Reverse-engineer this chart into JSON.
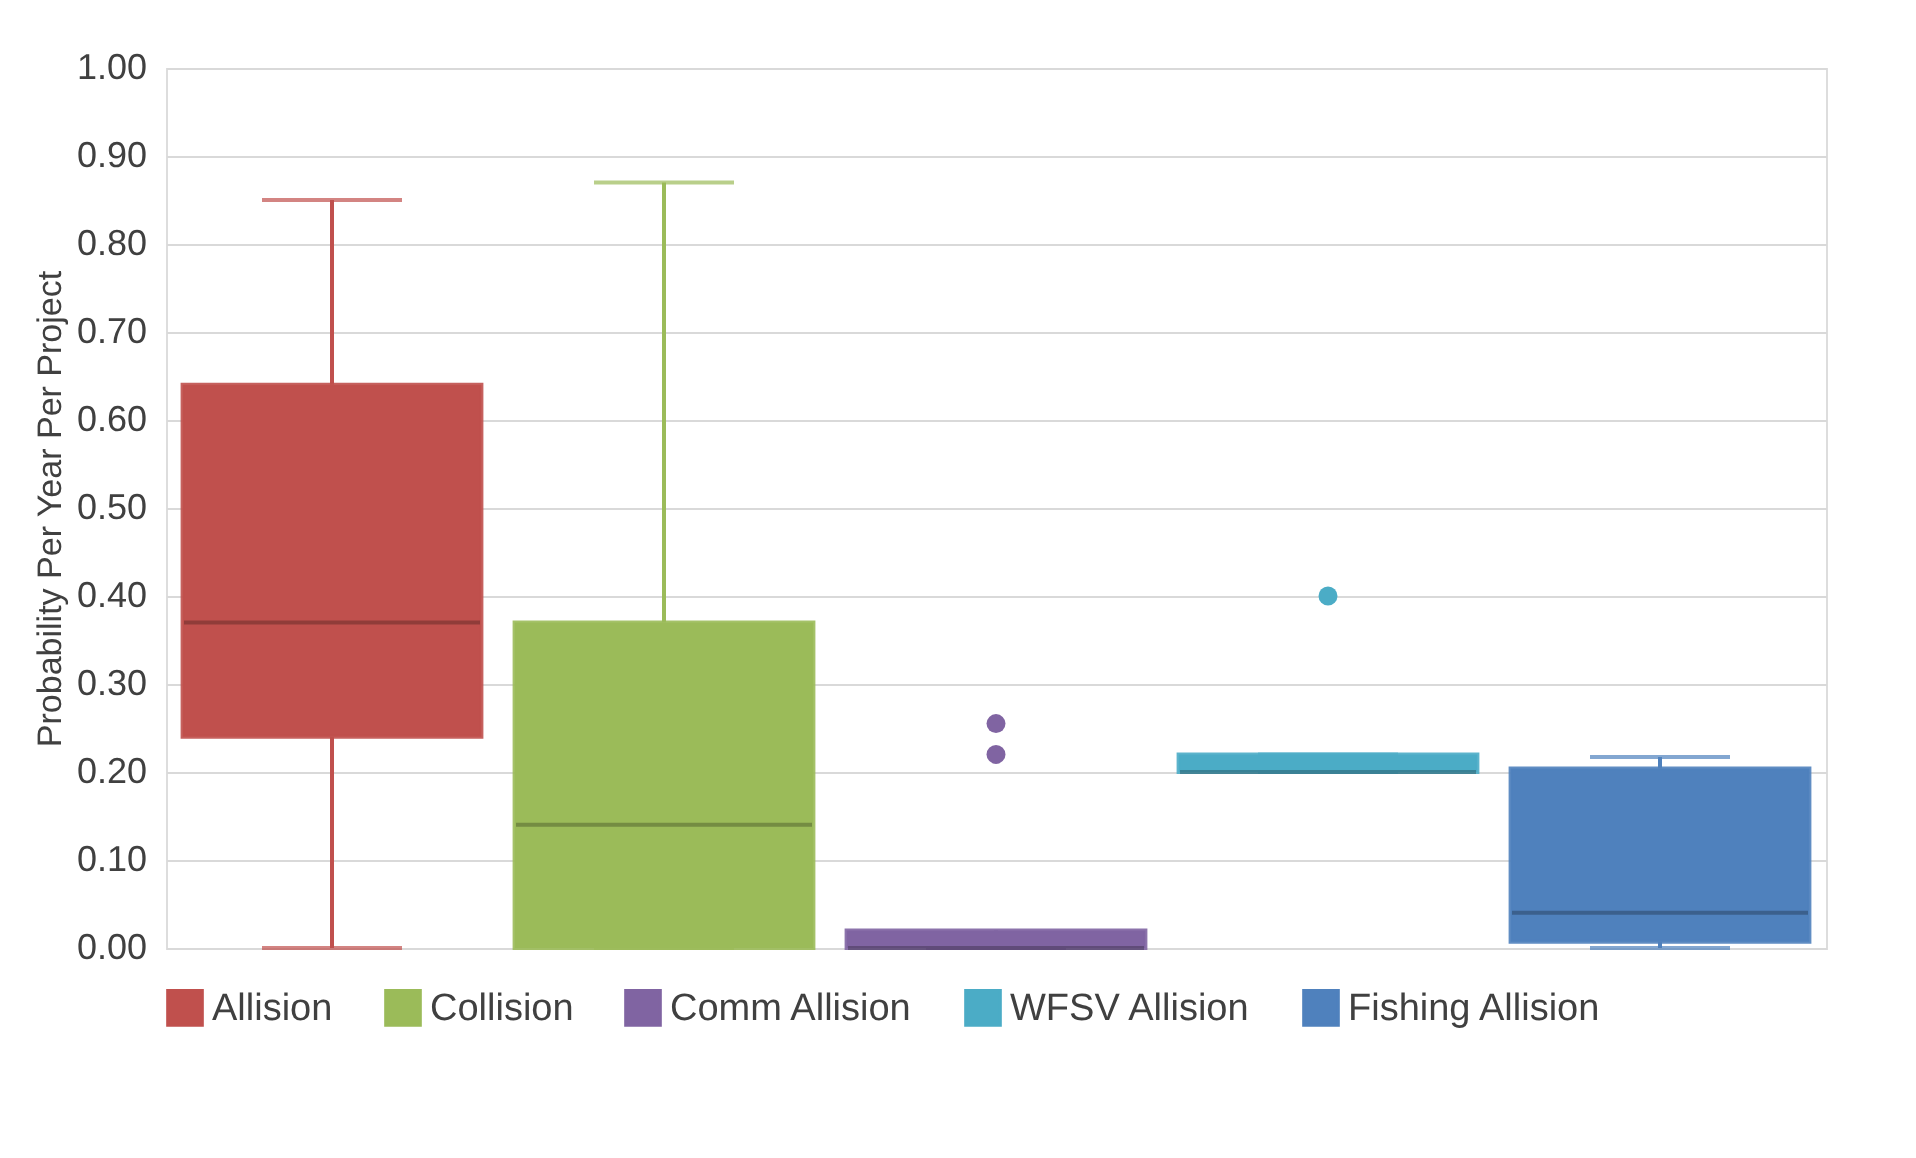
{
  "chart_data": {
    "type": "box",
    "ylabel": "Probability Per Year Per Project",
    "categories": [
      null,
      null,
      null,
      null,
      null
    ],
    "series": [
      {
        "name": "Allision",
        "color": "#c0504d",
        "boxes": [
          {
            "low": 0,
            "q1": 0.24,
            "median": 0.37,
            "q3": 0.64,
            "high": 0.85
          },
          null,
          null,
          null,
          null
        ]
      },
      {
        "name": "Collision",
        "color": "#9bbb59",
        "boxes": [
          null,
          {
            "low": 0,
            "q1": 0,
            "median": 0.14,
            "q3": 0.37,
            "high": 0.87
          },
          null,
          null,
          null
        ]
      },
      {
        "name": "Comm Allision",
        "color": "#8064a2",
        "boxes": [
          null,
          null,
          {
            "low": 0,
            "q1": 0,
            "median": 0,
            "q3": 0.02,
            "high": 0,
            "outliers": [
              0.255,
              0.22
            ]
          },
          null,
          null
        ]
      },
      {
        "name": "WFSV Allision",
        "color": "#4bacc6",
        "boxes": [
          null,
          null,
          null,
          {
            "low": 0.2,
            "q1": 0.2,
            "median": 0.2,
            "q3": 0.22,
            "high": 0.22,
            "outliers": [
              0.4
            ]
          },
          null
        ]
      },
      {
        "name": "Fishing Allision",
        "color": "#4f81bd",
        "boxes": [
          null,
          null,
          null,
          null,
          {
            "low": 0,
            "q1": 0.007,
            "median": 0.04,
            "q3": 0.204,
            "high": 0.217
          }
        ]
      }
    ],
    "ylim": [
      0,
      1
    ],
    "yticks": [
      {
        "value": 0,
        "label": "0.00"
      },
      {
        "value": 0.1,
        "label": "0.10"
      },
      {
        "value": 0.2,
        "label": "0.20"
      },
      {
        "value": 0.3,
        "label": "0.30"
      },
      {
        "value": 0.4,
        "label": "0.40"
      },
      {
        "value": 0.5,
        "label": "0.50"
      },
      {
        "value": 0.6,
        "label": "0.60"
      },
      {
        "value": 0.7,
        "label": "0.70"
      },
      {
        "value": 0.8,
        "label": "0.80"
      },
      {
        "value": 0.9,
        "label": "0.90"
      },
      {
        "value": 1,
        "label": "1.00"
      }
    ],
    "grid": "y",
    "legend": "bottom"
  }
}
